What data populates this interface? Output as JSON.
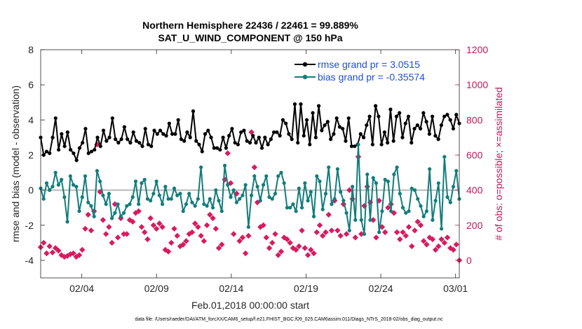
{
  "chart_data": {
    "type": "line",
    "title": "Northern Hemisphere 22436 / 22461 = 99.889%",
    "subtitle": "SAT_U_WIND_COMPONENT @ 150 hPa",
    "xlabel": "Feb.01,2018 00:00:00 start",
    "ylabel": "rmse and bias (model - observation)",
    "y2label": "# of obs: o=possible; ×=assimilated",
    "xlim": [
      1.0,
      29.0
    ],
    "ylim": [
      -5,
      8
    ],
    "y2lim": [
      -100,
      1200
    ],
    "xticks": [
      3.75,
      8.75,
      13.75,
      18.75,
      23.75,
      28.75
    ],
    "xtick_labels": [
      "02/04",
      "02/09",
      "02/14",
      "02/19",
      "02/24",
      "03/01"
    ],
    "yticks": [
      -4,
      -2,
      0,
      2,
      4,
      6,
      8
    ],
    "y2ticks": [
      0,
      200,
      400,
      600,
      800,
      1000,
      1200
    ],
    "zero_line": 0,
    "footnote": "data file: /Users/raeder/DAI/ATM_forcXX/CAM6_setup/f.e21.FHIST_BGC.f09_025.CAM6assim.011/Diags_NTrS_2018-02/obs_diag_output.nc",
    "series": [
      {
        "name": "rmse grand pr = 3.0515",
        "color": "#000000",
        "axis": "left",
        "marker": "circle",
        "values": [
          3.0,
          2.0,
          2.2,
          2.1,
          3.0,
          4.1,
          2.3,
          3.2,
          2.5,
          3.3,
          2.3,
          2.1,
          1.7,
          2.4,
          2.7,
          3.5,
          2.1,
          2.2,
          2.3,
          3.0,
          2.5,
          3.4,
          2.8,
          3.0,
          4.1,
          2.9,
          2.7,
          2.9,
          3.6,
          2.9,
          2.7,
          3.3,
          2.8,
          2.7,
          2.5,
          3.5,
          2.6,
          2.5,
          3.4,
          3.2,
          3.4,
          3.2,
          3.1,
          3.8,
          3.2,
          3.2,
          4.0,
          2.9,
          2.8,
          3.3,
          3.0,
          4.5,
          2.8,
          2.6,
          2.2,
          3.2,
          3.4,
          3.0,
          2.4,
          2.4,
          2.3,
          3.0,
          2.4,
          3.1,
          3.5,
          2.7,
          2.6,
          3.3,
          3.4,
          2.8,
          2.7,
          3.1,
          2.7,
          3.0,
          2.4,
          3.0,
          2.6,
          2.9,
          3.3,
          3.3,
          3.1,
          4.0,
          3.8,
          3.2,
          2.9,
          4.9,
          2.7,
          4.9,
          3.1,
          4.0,
          2.6,
          4.4,
          3.0,
          4.8,
          3.4,
          3.7,
          3.9,
          2.9,
          3.2,
          4.1,
          3.6,
          3.5,
          2.8,
          4.1,
          2.5,
          2.5,
          2.6,
          3.2,
          3.0,
          3.7,
          4.2,
          2.6,
          4.8,
          4.2,
          2.6,
          3.3,
          2.7,
          4.6,
          2.8,
          4.2,
          4.4,
          3.0,
          3.8,
          4.2,
          2.7,
          3.5,
          3.7,
          3.5,
          4.4,
          3.9,
          3.2,
          4.2,
          3.1,
          2.9,
          3.7,
          4.2,
          4.3,
          4.0,
          3.5,
          4.3,
          3.8
        ]
      },
      {
        "name": "bias grand pr = -0.35574",
        "color": "#127c7c",
        "axis": "left",
        "marker": "circle",
        "values": [
          0.1,
          -0.5,
          0.4,
          0.0,
          0.2,
          1.0,
          0.3,
          0.6,
          -0.4,
          -1.8,
          0.8,
          0.3,
          0.2,
          -1.2,
          -0.4,
          0.8,
          -0.7,
          -0.9,
          -1.5,
          1.1,
          0.5,
          -0.3,
          -0.8,
          -0.2,
          -1.6,
          -1.3,
          -0.8,
          -1.5,
          -1.3,
          -0.9,
          -0.8,
          -0.4,
          0.5,
          -0.8,
          0.4,
          0.6,
          -0.5,
          -0.6,
          -0.2,
          0.5,
          -0.3,
          -0.8,
          0.2,
          -0.5,
          -0.5,
          0.1,
          -0.3,
          -0.2,
          -1.2,
          -0.8,
          -0.2,
          -0.7,
          -0.9,
          -0.5,
          1.3,
          -0.8,
          -0.9,
          -0.5,
          -1.0,
          0.0,
          -0.6,
          -1.2,
          1.4,
          0.3,
          -0.4,
          0.0,
          -0.7,
          -0.5,
          -0.3,
          0.3,
          -2.1,
          -0.3,
          0.8,
          0.2,
          -0.6,
          0.3,
          0.8,
          -0.4,
          -0.5,
          -0.2,
          0.8,
          1.0,
          0.4,
          -1.0,
          -1.0,
          -0.8,
          -1.2,
          0.1,
          -1.0,
          0.4,
          -0.6,
          -0.1,
          -1.5,
          0.8,
          0.5,
          -1.1,
          -0.2,
          1.3,
          -0.8,
          -0.5,
          1.2,
          -0.1,
          -0.6,
          -1.3,
          -2.3,
          0.2,
          -1.7,
          2.6,
          -1.7,
          -2.5,
          0.9,
          -1.7,
          0.7,
          0.4,
          -2.4,
          -1.2,
          0.6,
          0.5,
          -1.2,
          0.9,
          1.3,
          -0.2,
          -1.0,
          -1.3,
          -1.2,
          0.1,
          0.0,
          -0.5,
          -0.9,
          -1.5,
          -1.2,
          1.2,
          -1.7,
          -0.6,
          0.4,
          -2.2,
          1.9,
          -0.4,
          -0.7,
          0.2,
          1.1,
          -0.5
        ]
      },
      {
        "name": "# assimilated",
        "color": "#d81b60",
        "axis": "right",
        "marker": "x",
        "values": [
          75,
          100,
          40,
          80,
          45,
          70,
          55,
          30,
          20,
          25,
          35,
          40,
          20,
          30,
          60,
          180,
          260,
          170,
          280,
          660,
          390,
          230,
          150,
          190,
          100,
          320,
          130,
          240,
          150,
          150,
          230,
          220,
          270,
          280,
          190,
          160,
          120,
          240,
          200,
          180,
          210,
          190,
          60,
          50,
          100,
          180,
          140,
          80,
          90,
          110,
          150,
          160,
          210,
          190,
          140,
          110,
          200,
          260,
          240,
          180,
          70,
          90,
          460,
          610,
          440,
          150,
          380,
          110,
          130,
          40,
          140,
          730,
          530,
          330,
          190,
          200,
          130,
          70,
          100,
          150,
          30,
          50,
          130,
          120,
          100,
          70,
          60,
          80,
          170,
          70,
          30,
          60,
          40,
          160,
          200,
          140,
          160,
          260,
          170,
          340,
          170,
          140,
          320,
          150,
          400,
          350,
          130,
          590,
          150,
          310,
          420,
          330,
          230,
          130,
          340,
          190,
          160,
          300,
          320,
          270,
          160,
          120,
          160,
          140,
          190,
          80,
          170,
          220,
          200,
          110,
          90,
          130,
          120,
          60,
          80,
          120,
          100,
          130,
          70,
          60,
          90,
          0
        ]
      }
    ]
  }
}
